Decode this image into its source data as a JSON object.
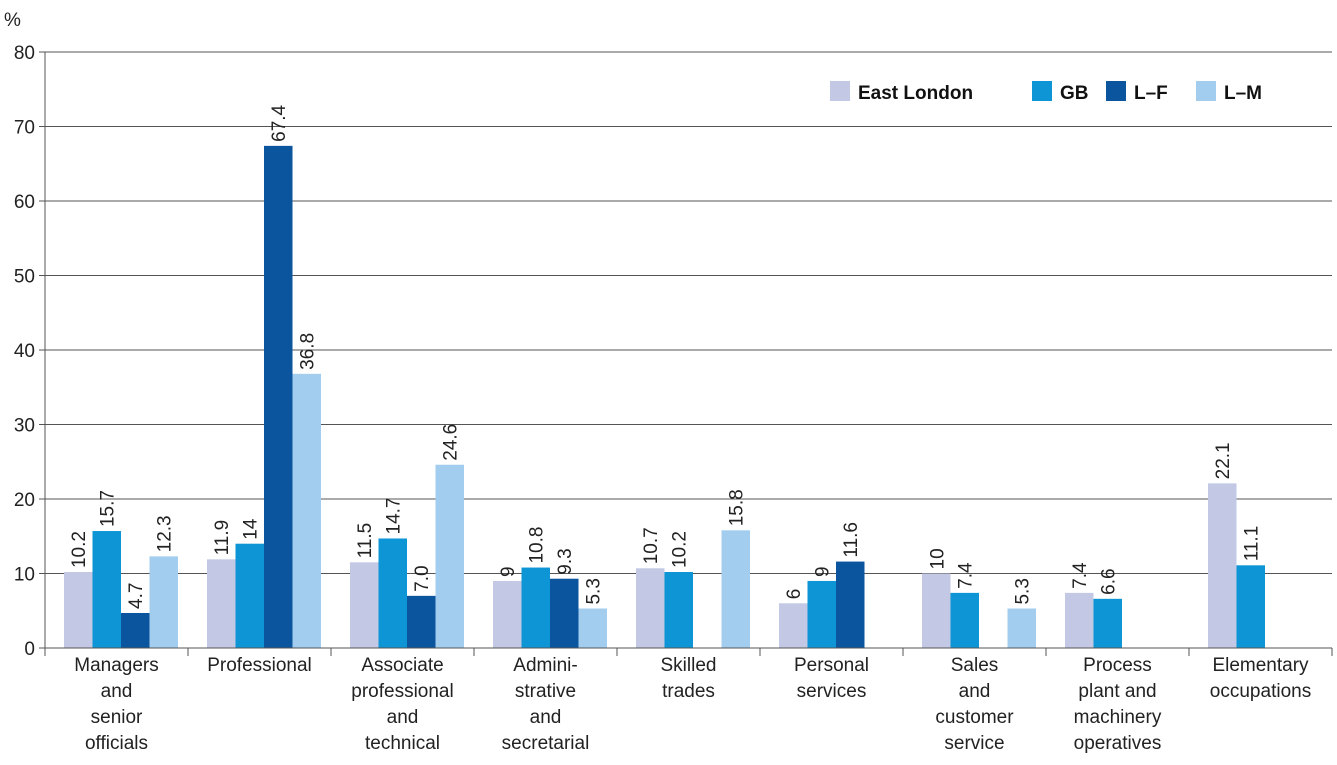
{
  "chart_data": {
    "type": "bar",
    "ylabel": "%",
    "ylim": [
      0,
      80
    ],
    "yticks": [
      0,
      10,
      20,
      30,
      40,
      50,
      60,
      70,
      80
    ],
    "grid": true,
    "legend_position": "top-right",
    "categories": [
      [
        "Managers",
        "and",
        "senior",
        "officials"
      ],
      [
        "Professional"
      ],
      [
        "Associate",
        "professional",
        "and",
        "technical"
      ],
      [
        "Admini-",
        "strative",
        "and",
        "secretarial"
      ],
      [
        "Skilled",
        "trades"
      ],
      [
        "Personal",
        "services"
      ],
      [
        "Sales",
        "and",
        "customer",
        "service"
      ],
      [
        "Process",
        "plant and",
        "machinery",
        "operatives"
      ],
      [
        "Elementary",
        "occupations"
      ]
    ],
    "series": [
      {
        "name": "East London",
        "color": "#c3c8e4",
        "values": [
          10.2,
          11.9,
          11.5,
          9,
          10.7,
          6,
          10,
          7.4,
          22.1
        ],
        "labels": [
          "10.2",
          "11.9",
          "11.5",
          "9",
          "10.7",
          "6",
          "10",
          "7.4",
          "22.1"
        ]
      },
      {
        "name": "GB",
        "color": "#0d95d6",
        "values": [
          15.7,
          14,
          14.7,
          10.8,
          10.2,
          9,
          7.4,
          6.6,
          11.1
        ],
        "labels": [
          "15.7",
          "14",
          "14.7",
          "10.8",
          "10.2",
          "9",
          "7.4",
          "6.6",
          "11.1"
        ]
      },
      {
        "name": "L–F",
        "color": "#0b559e",
        "values": [
          4.7,
          67.4,
          7.0,
          9.3,
          null,
          11.6,
          null,
          null,
          null
        ],
        "labels": [
          "4.7",
          "67.4",
          "7.0",
          "9.3",
          null,
          "11.6",
          null,
          null,
          null
        ]
      },
      {
        "name": "L–M",
        "color": "#a3cdee",
        "values": [
          12.3,
          36.8,
          24.6,
          5.3,
          15.8,
          null,
          5.3,
          null,
          null
        ],
        "labels": [
          "12.3",
          "36.8",
          "24.6",
          "5.3",
          "15.8",
          null,
          "5.3",
          null,
          null
        ]
      }
    ]
  }
}
